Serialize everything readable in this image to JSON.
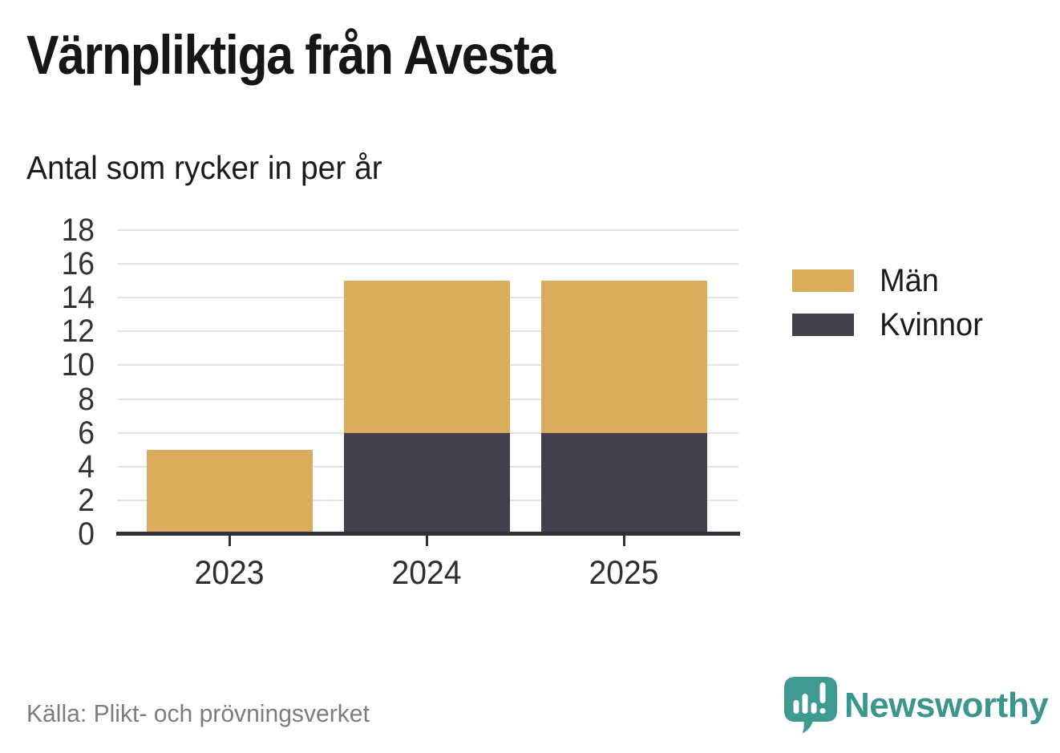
{
  "header": {
    "title": "Värnpliktiga från Avesta",
    "subtitle": "Antal som rycker in per år"
  },
  "chart_data": {
    "type": "bar",
    "stacked": true,
    "title": "Värnpliktiga från Avesta",
    "subtitle": "Antal som rycker in per år",
    "categories": [
      "2023",
      "2024",
      "2025"
    ],
    "series": [
      {
        "name": "Män",
        "color_key": "men",
        "values": [
          5,
          9,
          9
        ]
      },
      {
        "name": "Kvinnor",
        "color_key": "women",
        "values": [
          0,
          6,
          6
        ]
      }
    ],
    "totals": [
      5,
      15,
      15
    ],
    "stack_order_bottom_to_top": [
      "Kvinnor",
      "Män"
    ],
    "ylim": [
      0,
      18
    ],
    "yticks": [
      0,
      2,
      4,
      6,
      8,
      10,
      12,
      14,
      16,
      18
    ],
    "xlabel": "",
    "ylabel": "",
    "grid": true,
    "legend_position": "right"
  },
  "colors": {
    "men": "#D9AD5C",
    "women": "#42404D",
    "gridline": "#E3E3E3",
    "axis": "#31303A",
    "title_text": "#161616",
    "tick_text": "#333333",
    "source_text": "#7D7D7D",
    "brand_teal": "#3C968F"
  },
  "footer": {
    "source": "Källa: Plikt- och prövningsverket",
    "brand": "Newsworthy",
    "brand_icon": "newsworthy-speech-bubble-chart-icon"
  }
}
